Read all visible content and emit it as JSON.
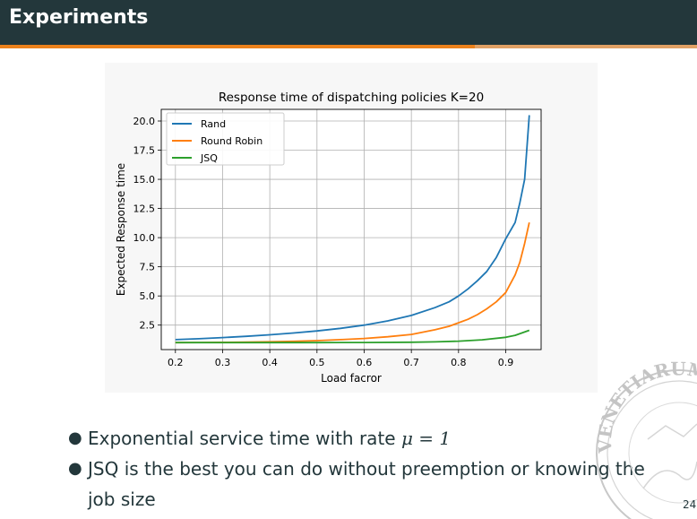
{
  "slide": {
    "title": "Experiments",
    "page_number": "24",
    "bullets": [
      {
        "text_before": "Exponential service time with rate ",
        "math": "μ = 1"
      },
      {
        "text_before": "JSQ is the best you can do without preemption or knowing the job size",
        "math": ""
      }
    ],
    "seal_text": "VENETIARUM"
  },
  "chart_data": {
    "type": "line",
    "title": "Response time of dispatching policies K=20",
    "xlabel": "Load facror",
    "ylabel": "Expected Response time",
    "xlim": [
      0.17,
      0.975
    ],
    "ylim": [
      0.4,
      21.0
    ],
    "xticks": [
      0.2,
      0.3,
      0.4,
      0.5,
      0.6,
      0.7,
      0.8,
      0.9
    ],
    "xtick_labels": [
      "0.2",
      "0.3",
      "0.4",
      "0.5",
      "0.6",
      "0.7",
      "0.8",
      "0.9"
    ],
    "yticks": [
      2.5,
      5.0,
      7.5,
      10.0,
      12.5,
      15.0,
      17.5,
      20.0
    ],
    "ytick_labels": [
      "2.5",
      "5.0",
      "7.5",
      "10.0",
      "12.5",
      "15.0",
      "17.5",
      "20.0"
    ],
    "grid": true,
    "legend_position": "top-left",
    "series": [
      {
        "name": "Rand",
        "color": "#1f77b4",
        "x": [
          0.2,
          0.25,
          0.3,
          0.35,
          0.4,
          0.45,
          0.5,
          0.55,
          0.6,
          0.65,
          0.7,
          0.75,
          0.78,
          0.8,
          0.82,
          0.84,
          0.86,
          0.88,
          0.9,
          0.92,
          0.93,
          0.94,
          0.95
        ],
        "y": [
          1.25,
          1.33,
          1.43,
          1.54,
          1.67,
          1.82,
          2.0,
          2.22,
          2.5,
          2.86,
          3.33,
          4.0,
          4.5,
          5.0,
          5.6,
          6.3,
          7.1,
          8.3,
          9.9,
          11.3,
          13.0,
          15.0,
          20.5
        ]
      },
      {
        "name": "Round Robin",
        "color": "#ff7f0e",
        "x": [
          0.2,
          0.25,
          0.3,
          0.35,
          0.4,
          0.45,
          0.5,
          0.55,
          0.6,
          0.65,
          0.7,
          0.75,
          0.78,
          0.8,
          0.82,
          0.84,
          0.86,
          0.88,
          0.9,
          0.92,
          0.93,
          0.94,
          0.95
        ],
        "y": [
          1.0,
          1.01,
          1.02,
          1.04,
          1.07,
          1.11,
          1.17,
          1.25,
          1.35,
          1.5,
          1.7,
          2.1,
          2.4,
          2.7,
          3.0,
          3.4,
          3.9,
          4.5,
          5.3,
          6.8,
          7.9,
          9.5,
          11.3
        ]
      },
      {
        "name": "JSQ",
        "color": "#2ca02c",
        "x": [
          0.2,
          0.3,
          0.4,
          0.5,
          0.6,
          0.7,
          0.75,
          0.8,
          0.85,
          0.9,
          0.92,
          0.95
        ],
        "y": [
          1.0,
          1.0,
          1.0,
          1.0,
          1.01,
          1.03,
          1.06,
          1.12,
          1.24,
          1.45,
          1.62,
          2.05
        ]
      }
    ]
  }
}
